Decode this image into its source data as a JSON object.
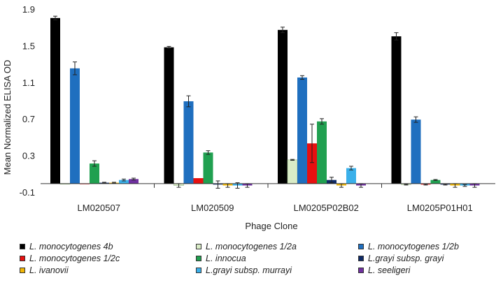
{
  "chart_data": {
    "type": "bar",
    "ylabel": "Mean Normalized ELISA OD",
    "xlabel": "Phage Clone",
    "ylim": [
      -0.1,
      1.9
    ],
    "yticks": [
      -0.1,
      0.3,
      0.7,
      1.1,
      1.5,
      1.9
    ],
    "yticklabels": [
      "-0.1",
      "0.3",
      "0.7",
      "1.1",
      "1.5",
      "1.9"
    ],
    "categories": [
      "LM020507",
      "LM020509",
      "LM0205P02B02",
      "LM0205P01H01"
    ],
    "legend_position": "bottom",
    "series": [
      {
        "name": "L. monocytogenes 4b",
        "color": "#000000",
        "values": [
          1.81,
          1.49,
          1.68,
          1.61
        ],
        "errors": [
          0.02,
          0.01,
          0.03,
          0.04
        ]
      },
      {
        "name": "L. monocytogenes 1/2a",
        "color": "#d9ecc7",
        "values": [
          0.0,
          -0.02,
          0.26,
          -0.01
        ],
        "errors": [
          0.0,
          0.02,
          0.005,
          0.005
        ]
      },
      {
        "name": "L. monocytogenes 1/2b",
        "color": "#1f6fbf",
        "values": [
          1.26,
          0.9,
          1.16,
          0.7
        ],
        "errors": [
          0.07,
          0.06,
          0.02,
          0.03
        ]
      },
      {
        "name": "L. monocytogenes 1/2c",
        "color": "#e81010",
        "values": [
          0.0,
          0.06,
          0.44,
          -0.01
        ],
        "errors": [
          0.0,
          0.0,
          0.21,
          0.005
        ]
      },
      {
        "name": "L. innocua",
        "color": "#20a050",
        "values": [
          0.22,
          0.34,
          0.68,
          0.04
        ],
        "errors": [
          0.03,
          0.02,
          0.03,
          0.005
        ]
      },
      {
        "name": "L.grayi subsp. grayi",
        "color": "#0e2a66",
        "values": [
          0.01,
          -0.01,
          0.04,
          -0.01
        ],
        "errors": [
          0.005,
          0.04,
          0.03,
          0.005
        ]
      },
      {
        "name": "L. ivanovii",
        "color": "#f2b705",
        "values": [
          0.01,
          -0.02,
          -0.02,
          -0.02
        ],
        "errors": [
          0.005,
          0.02,
          0.02,
          0.02
        ]
      },
      {
        "name": "L.grayi subsp. murrayi",
        "color": "#3ab0ea",
        "values": [
          0.04,
          -0.02,
          0.17,
          -0.02
        ],
        "errors": [
          0.01,
          0.03,
          0.02,
          0.01
        ]
      },
      {
        "name": "L. seeligeri",
        "color": "#7030a0",
        "values": [
          0.05,
          -0.02,
          -0.02,
          -0.02
        ],
        "errors": [
          0.01,
          0.02,
          0.02,
          0.02
        ]
      }
    ]
  },
  "legend": {
    "items": [
      {
        "genus": "L.",
        "species": " monocytogenes 4b",
        "color": "#000000"
      },
      {
        "genus": "L.",
        "species": " monocytogenes 1/2a",
        "color": "#d9ecc7"
      },
      {
        "genus": "L.",
        "species": " monocytogenes 1/2b",
        "color": "#1f6fbf"
      },
      {
        "genus": "L.",
        "species": " monocytogenes 1/2c",
        "color": "#e81010"
      },
      {
        "genus": "L.",
        "species": " innocua",
        "color": "#20a050"
      },
      {
        "genus": "L.grayi",
        "species": " subsp. grayi",
        "color": "#0e2a66"
      },
      {
        "genus": "L.",
        "species": " ivanovii",
        "color": "#f2b705"
      },
      {
        "genus": "L.grayi",
        "species": " subsp. murrayi",
        "color": "#3ab0ea"
      },
      {
        "genus": "L.",
        "species": " seeligeri",
        "color": "#7030a0"
      }
    ]
  }
}
